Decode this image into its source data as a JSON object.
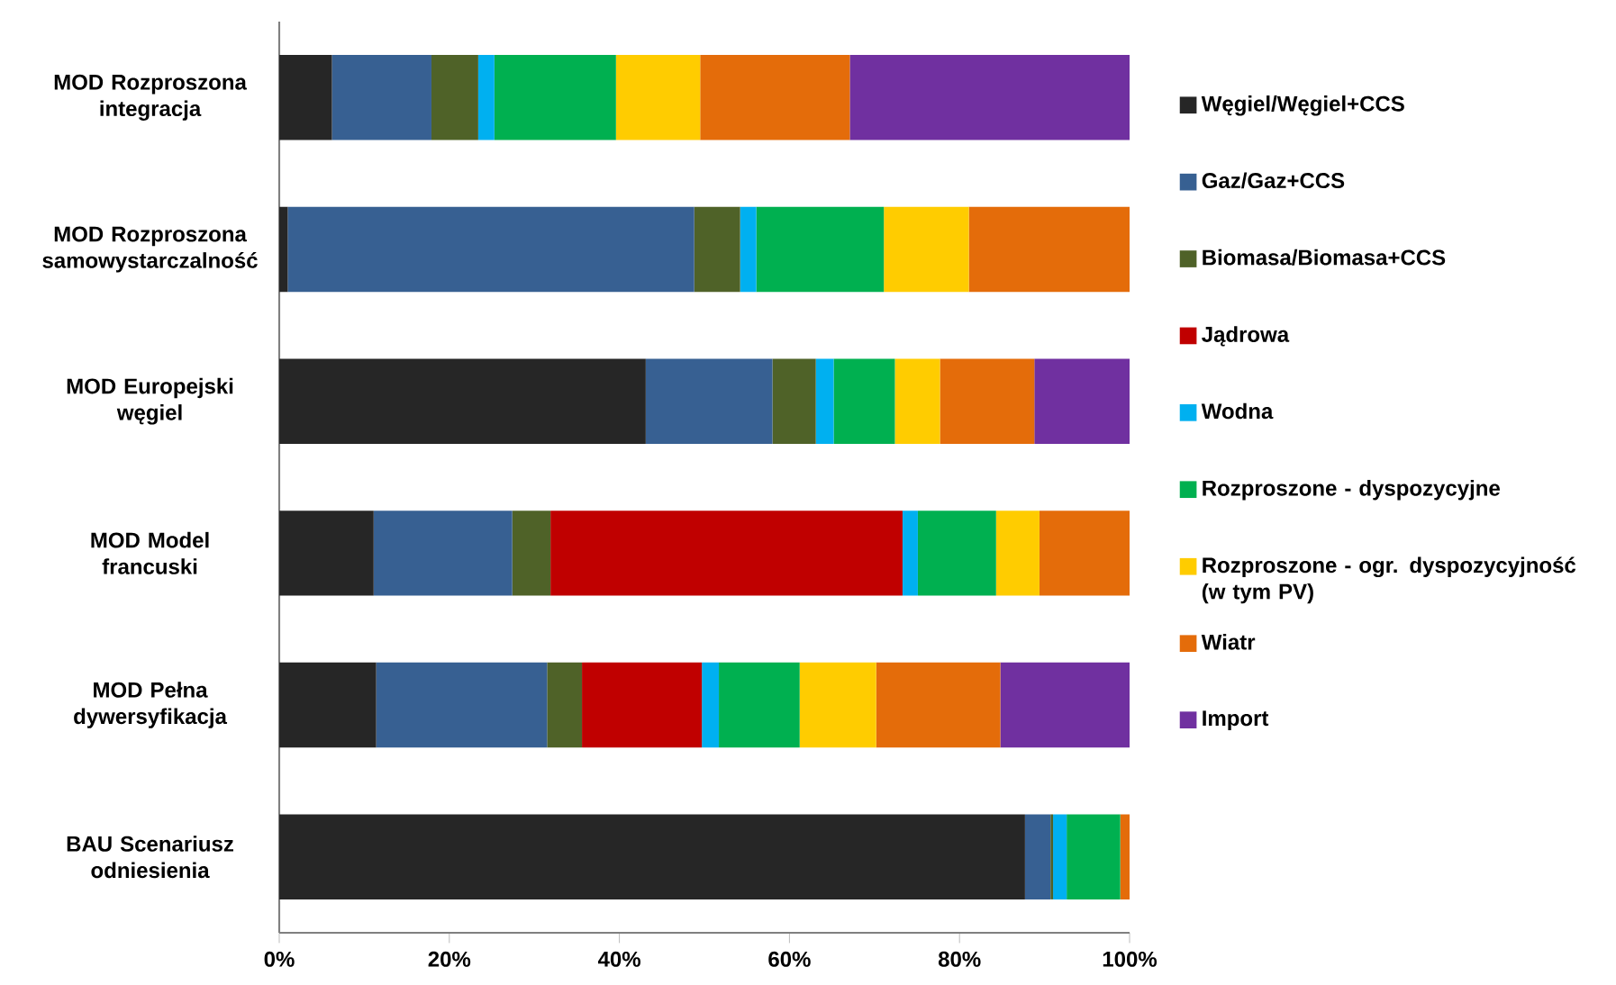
{
  "chart_data": {
    "type": "bar",
    "orientation": "horizontal",
    "stacked": true,
    "legend": "right",
    "grid": false,
    "categories": [
      "MOD Rozproszona integracja",
      "MOD Rozproszona samowystarczalność",
      "MOD Europejski węgiel",
      "MOD Model francuski",
      "MOD Pełna dywersyfikacja",
      "BAU Scenariusz odniesienia"
    ],
    "xlim": [
      0,
      100
    ],
    "xticks": [
      {
        "value": 0,
        "label": "0%"
      },
      {
        "value": 20,
        "label": "20%"
      },
      {
        "value": 40,
        "label": "40%"
      },
      {
        "value": 60,
        "label": "60%"
      },
      {
        "value": 80,
        "label": "80%"
      },
      {
        "value": 100,
        "label": "100%"
      }
    ],
    "series": [
      {
        "name": "Węgiel/Węgiel+CCS",
        "color": "#262626",
        "values": [
          6.2,
          1.0,
          43.1,
          11.1,
          11.4,
          87.7
        ]
      },
      {
        "name": "Gaz/Gaz+CCS",
        "color": "#376092",
        "values": [
          11.7,
          47.8,
          14.9,
          16.3,
          20.1,
          3.0
        ]
      },
      {
        "name": "Biomasa/Biomasa+CCS",
        "color": "#4f6228",
        "values": [
          5.5,
          5.4,
          5.1,
          4.5,
          4.1,
          0.3
        ]
      },
      {
        "name": "Jądrowa",
        "color": "#c00000",
        "values": [
          0,
          0,
          0,
          41.4,
          14.1,
          0
        ]
      },
      {
        "name": "Wodna",
        "color": "#00b0f0",
        "values": [
          1.9,
          1.9,
          2.1,
          1.8,
          2.0,
          1.6
        ]
      },
      {
        "name": "Rozproszone - dyspozycyjne",
        "color": "#00b050",
        "values": [
          14.3,
          15.0,
          7.2,
          9.2,
          9.5,
          6.3
        ]
      },
      {
        "name": "Rozproszone - ogr. dyspozycyjność (w tym PV)",
        "color": "#ffcc00",
        "values": [
          9.9,
          10.0,
          5.3,
          5.1,
          9.0,
          0
        ]
      },
      {
        "name": "Wiatr",
        "color": "#e46c0a",
        "values": [
          17.6,
          18.9,
          11.1,
          10.6,
          14.6,
          1.1
        ]
      },
      {
        "name": "Import",
        "color": "#7030a0",
        "values": [
          32.9,
          0,
          11.2,
          0,
          15.2,
          0
        ]
      }
    ]
  }
}
